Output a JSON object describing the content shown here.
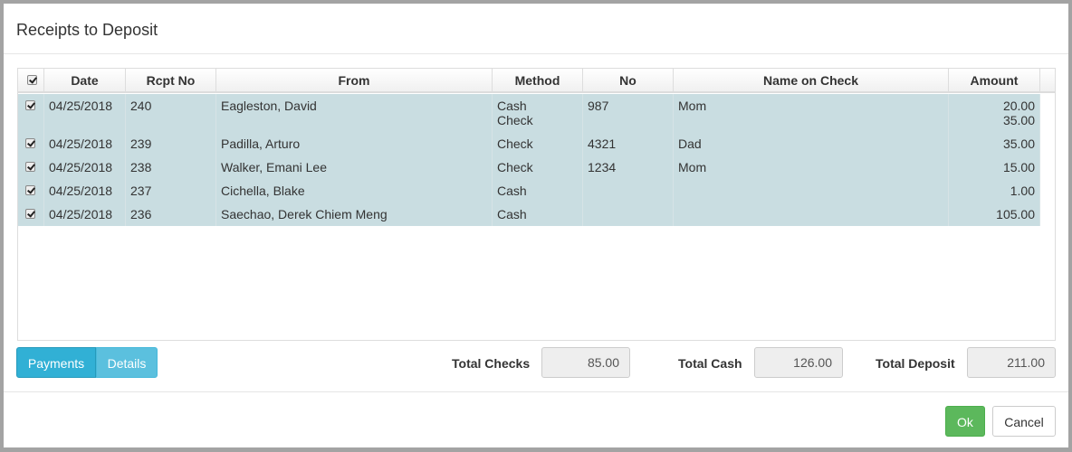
{
  "dialog": {
    "title": "Receipts to Deposit"
  },
  "table": {
    "columns": [
      "",
      "Date",
      "Rcpt No",
      "From",
      "Method",
      "No",
      "Name on Check",
      "Amount"
    ],
    "rows": [
      {
        "checked": true,
        "date": "04/25/2018",
        "rcpt": "240",
        "from": "Eagleston, David",
        "method": "Cash\nCheck",
        "no": "987",
        "name": "Mom",
        "amount": "20.00\n35.00"
      },
      {
        "checked": true,
        "date": "04/25/2018",
        "rcpt": "239",
        "from": "Padilla, Arturo",
        "method": "Check",
        "no": "4321",
        "name": "Dad",
        "amount": "35.00"
      },
      {
        "checked": true,
        "date": "04/25/2018",
        "rcpt": "238",
        "from": "Walker, Emani Lee",
        "method": "Check",
        "no": "1234",
        "name": "Mom",
        "amount": "15.00"
      },
      {
        "checked": true,
        "date": "04/25/2018",
        "rcpt": "237",
        "from": "Cichella, Blake",
        "method": "Cash",
        "no": "",
        "name": "",
        "amount": "1.00"
      },
      {
        "checked": true,
        "date": "04/25/2018",
        "rcpt": "236",
        "from": "Saechao, Derek Chiem Meng",
        "method": "Cash",
        "no": "",
        "name": "",
        "amount": "105.00"
      }
    ]
  },
  "tabs": {
    "payments": "Payments",
    "details": "Details",
    "active": "Payments"
  },
  "totals": {
    "checks_label": "Total Checks",
    "checks": "85.00",
    "cash_label": "Total Cash",
    "cash": "126.00",
    "deposit_label": "Total Deposit",
    "deposit": "211.00"
  },
  "footer": {
    "ok": "Ok",
    "cancel": "Cancel"
  },
  "colors": {
    "row_selected": "#c9dde1",
    "tab_active": "#31b0d5",
    "tab": "#5bc0de",
    "ok": "#5cb85c"
  }
}
